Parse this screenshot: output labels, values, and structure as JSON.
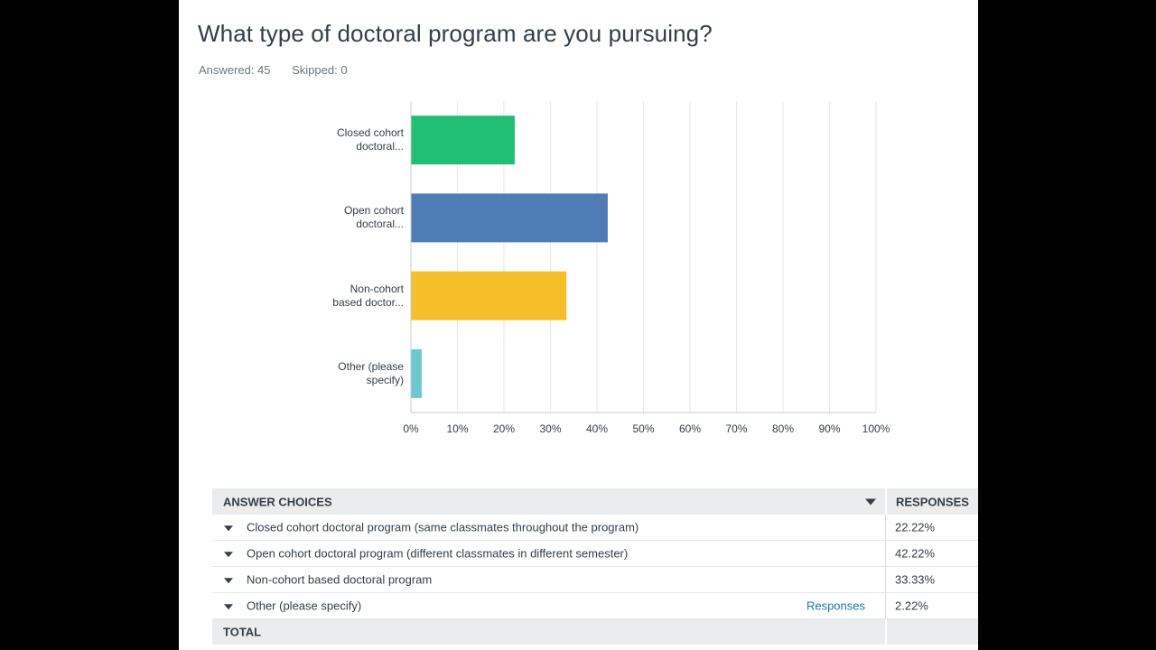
{
  "question": {
    "title": "What type of doctoral program are you pursuing?",
    "answered": "Answered: 45",
    "skipped": "Skipped: 0"
  },
  "colors": {
    "bar_colors": [
      "#21bf73",
      "#507cb6",
      "#f6be28",
      "#6bc8cd"
    ],
    "grid": "#e4e6e8",
    "axis": "#c9cdd0"
  },
  "chart_data": {
    "type": "bar",
    "orientation": "horizontal",
    "categories": [
      [
        "Closed cohort",
        "doctoral..."
      ],
      [
        "Open cohort",
        "doctoral..."
      ],
      [
        "Non-cohort",
        "based doctor..."
      ],
      [
        "Other (please",
        "specify)"
      ]
    ],
    "values": [
      22.22,
      42.22,
      33.33,
      2.22
    ],
    "xlim": [
      0,
      100
    ],
    "xticks": [
      "0%",
      "10%",
      "20%",
      "30%",
      "40%",
      "50%",
      "60%",
      "70%",
      "80%",
      "90%",
      "100%"
    ],
    "title": "",
    "xlabel": "",
    "ylabel": ""
  },
  "table": {
    "header_choice": "ANSWER CHOICES",
    "header_responses": "RESPONSES",
    "rows": [
      {
        "choice": "Closed cohort doctoral program (same classmates throughout the program)",
        "response": "22.22%"
      },
      {
        "choice": "Open cohort doctoral program (different classmates in different semester)",
        "response": "42.22%"
      },
      {
        "choice": "Non-cohort based doctoral program",
        "response": "33.33%"
      },
      {
        "choice": "Other (please specify)",
        "response": "2.22%",
        "link": "Responses"
      }
    ],
    "total_label": "TOTAL"
  }
}
